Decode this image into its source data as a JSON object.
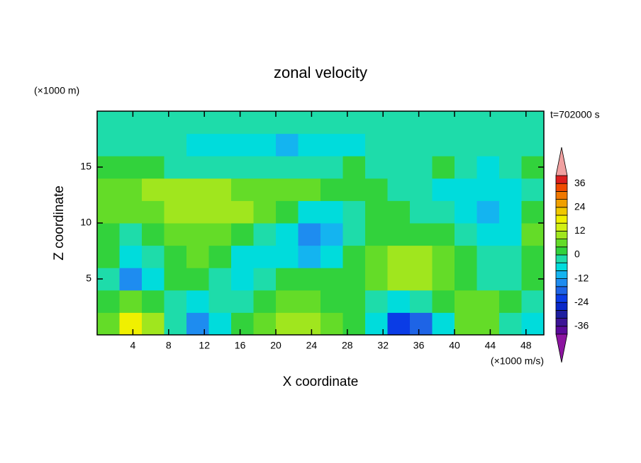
{
  "chart_data": {
    "type": "contour",
    "title": "zonal velocity",
    "x_label": "X coordinate",
    "y_label": "Z coordinate",
    "x_unit": "(×1000 m/s)",
    "y_unit": "(×1000 m)",
    "annotation": "t=702000 s",
    "xlim": [
      0,
      50
    ],
    "ylim": [
      0,
      20
    ],
    "xticks": [
      4,
      8,
      12,
      16,
      20,
      24,
      28,
      32,
      36,
      40,
      44,
      48
    ],
    "yticks": [
      5,
      10,
      15
    ],
    "x": [
      1.25,
      3.75,
      6.25,
      8.75,
      11.25,
      13.75,
      16.25,
      18.75,
      21.25,
      23.75,
      26.25,
      28.75,
      31.25,
      33.75,
      36.25,
      38.75,
      41.25,
      43.75,
      46.25,
      48.75
    ],
    "y": [
      1,
      3,
      5,
      7,
      9,
      11,
      13,
      15,
      17,
      19
    ],
    "z": [
      [
        4,
        16,
        10,
        -2,
        -16,
        -6,
        2,
        6,
        8,
        8,
        6,
        2,
        -6,
        -22,
        -18,
        -6,
        4,
        6,
        -2,
        -6
      ],
      [
        2,
        4,
        2,
        -4,
        -8,
        -4,
        -2,
        2,
        4,
        4,
        2,
        0,
        -2,
        -6,
        -4,
        0,
        4,
        6,
        2,
        -2
      ],
      [
        -2,
        -14,
        -6,
        0,
        2,
        -4,
        -6,
        -2,
        2,
        2,
        0,
        2,
        6,
        10,
        10,
        6,
        2,
        -2,
        -2,
        2
      ],
      [
        0,
        -8,
        -4,
        2,
        4,
        0,
        -6,
        -8,
        -6,
        -10,
        -8,
        0,
        6,
        8,
        8,
        4,
        0,
        -4,
        -4,
        2
      ],
      [
        2,
        -2,
        0,
        6,
        6,
        4,
        0,
        -4,
        -8,
        -16,
        -10,
        -2,
        2,
        2,
        2,
        0,
        -4,
        -6,
        -6,
        4
      ],
      [
        4,
        6,
        6,
        8,
        10,
        10,
        8,
        6,
        2,
        -6,
        -6,
        -2,
        0,
        0,
        -2,
        -4,
        -8,
        -10,
        -6,
        0
      ],
      [
        4,
        6,
        8,
        10,
        8,
        8,
        6,
        6,
        4,
        4,
        2,
        2,
        0,
        -2,
        -4,
        -6,
        -8,
        -8,
        -6,
        -2
      ],
      [
        2,
        2,
        0,
        -2,
        -2,
        -2,
        -2,
        -2,
        -2,
        -2,
        -2,
        0,
        -2,
        -2,
        -2,
        2,
        -4,
        -6,
        -4,
        2
      ],
      [
        -2,
        -2,
        -4,
        -4,
        -6,
        -6,
        -6,
        -8,
        -10,
        -8,
        -6,
        -6,
        -4,
        -4,
        -4,
        -2,
        -4,
        -4,
        -2,
        -2
      ],
      [
        -2,
        -2,
        -2,
        -2,
        -2,
        -4,
        -4,
        -4,
        -4,
        -4,
        -4,
        -4,
        -4,
        -4,
        -2,
        -2,
        -2,
        -2,
        -2,
        -2
      ]
    ],
    "levels": [
      -40,
      -36,
      -32,
      -28,
      -24,
      -20,
      -16,
      -12,
      -8,
      -4,
      0,
      4,
      8,
      12,
      16,
      20,
      24,
      28,
      32,
      36,
      40
    ],
    "colors": [
      "#5a0a9a",
      "#3c1496",
      "#1e1ea0",
      "#0a28c8",
      "#0a3ce6",
      "#1e64e6",
      "#1e8cf0",
      "#14b4f0",
      "#00dcdc",
      "#1edcaa",
      "#32d23c",
      "#64dc28",
      "#a0e61e",
      "#d2f014",
      "#f0f000",
      "#f0c800",
      "#f0a000",
      "#f07800",
      "#f04b00",
      "#dc1e1e"
    ],
    "under_color": "#8c14a0",
    "over_color": "#f0a0a0",
    "colorbar_ticks": [
      -36,
      -24,
      -12,
      0,
      12,
      24,
      36
    ]
  }
}
